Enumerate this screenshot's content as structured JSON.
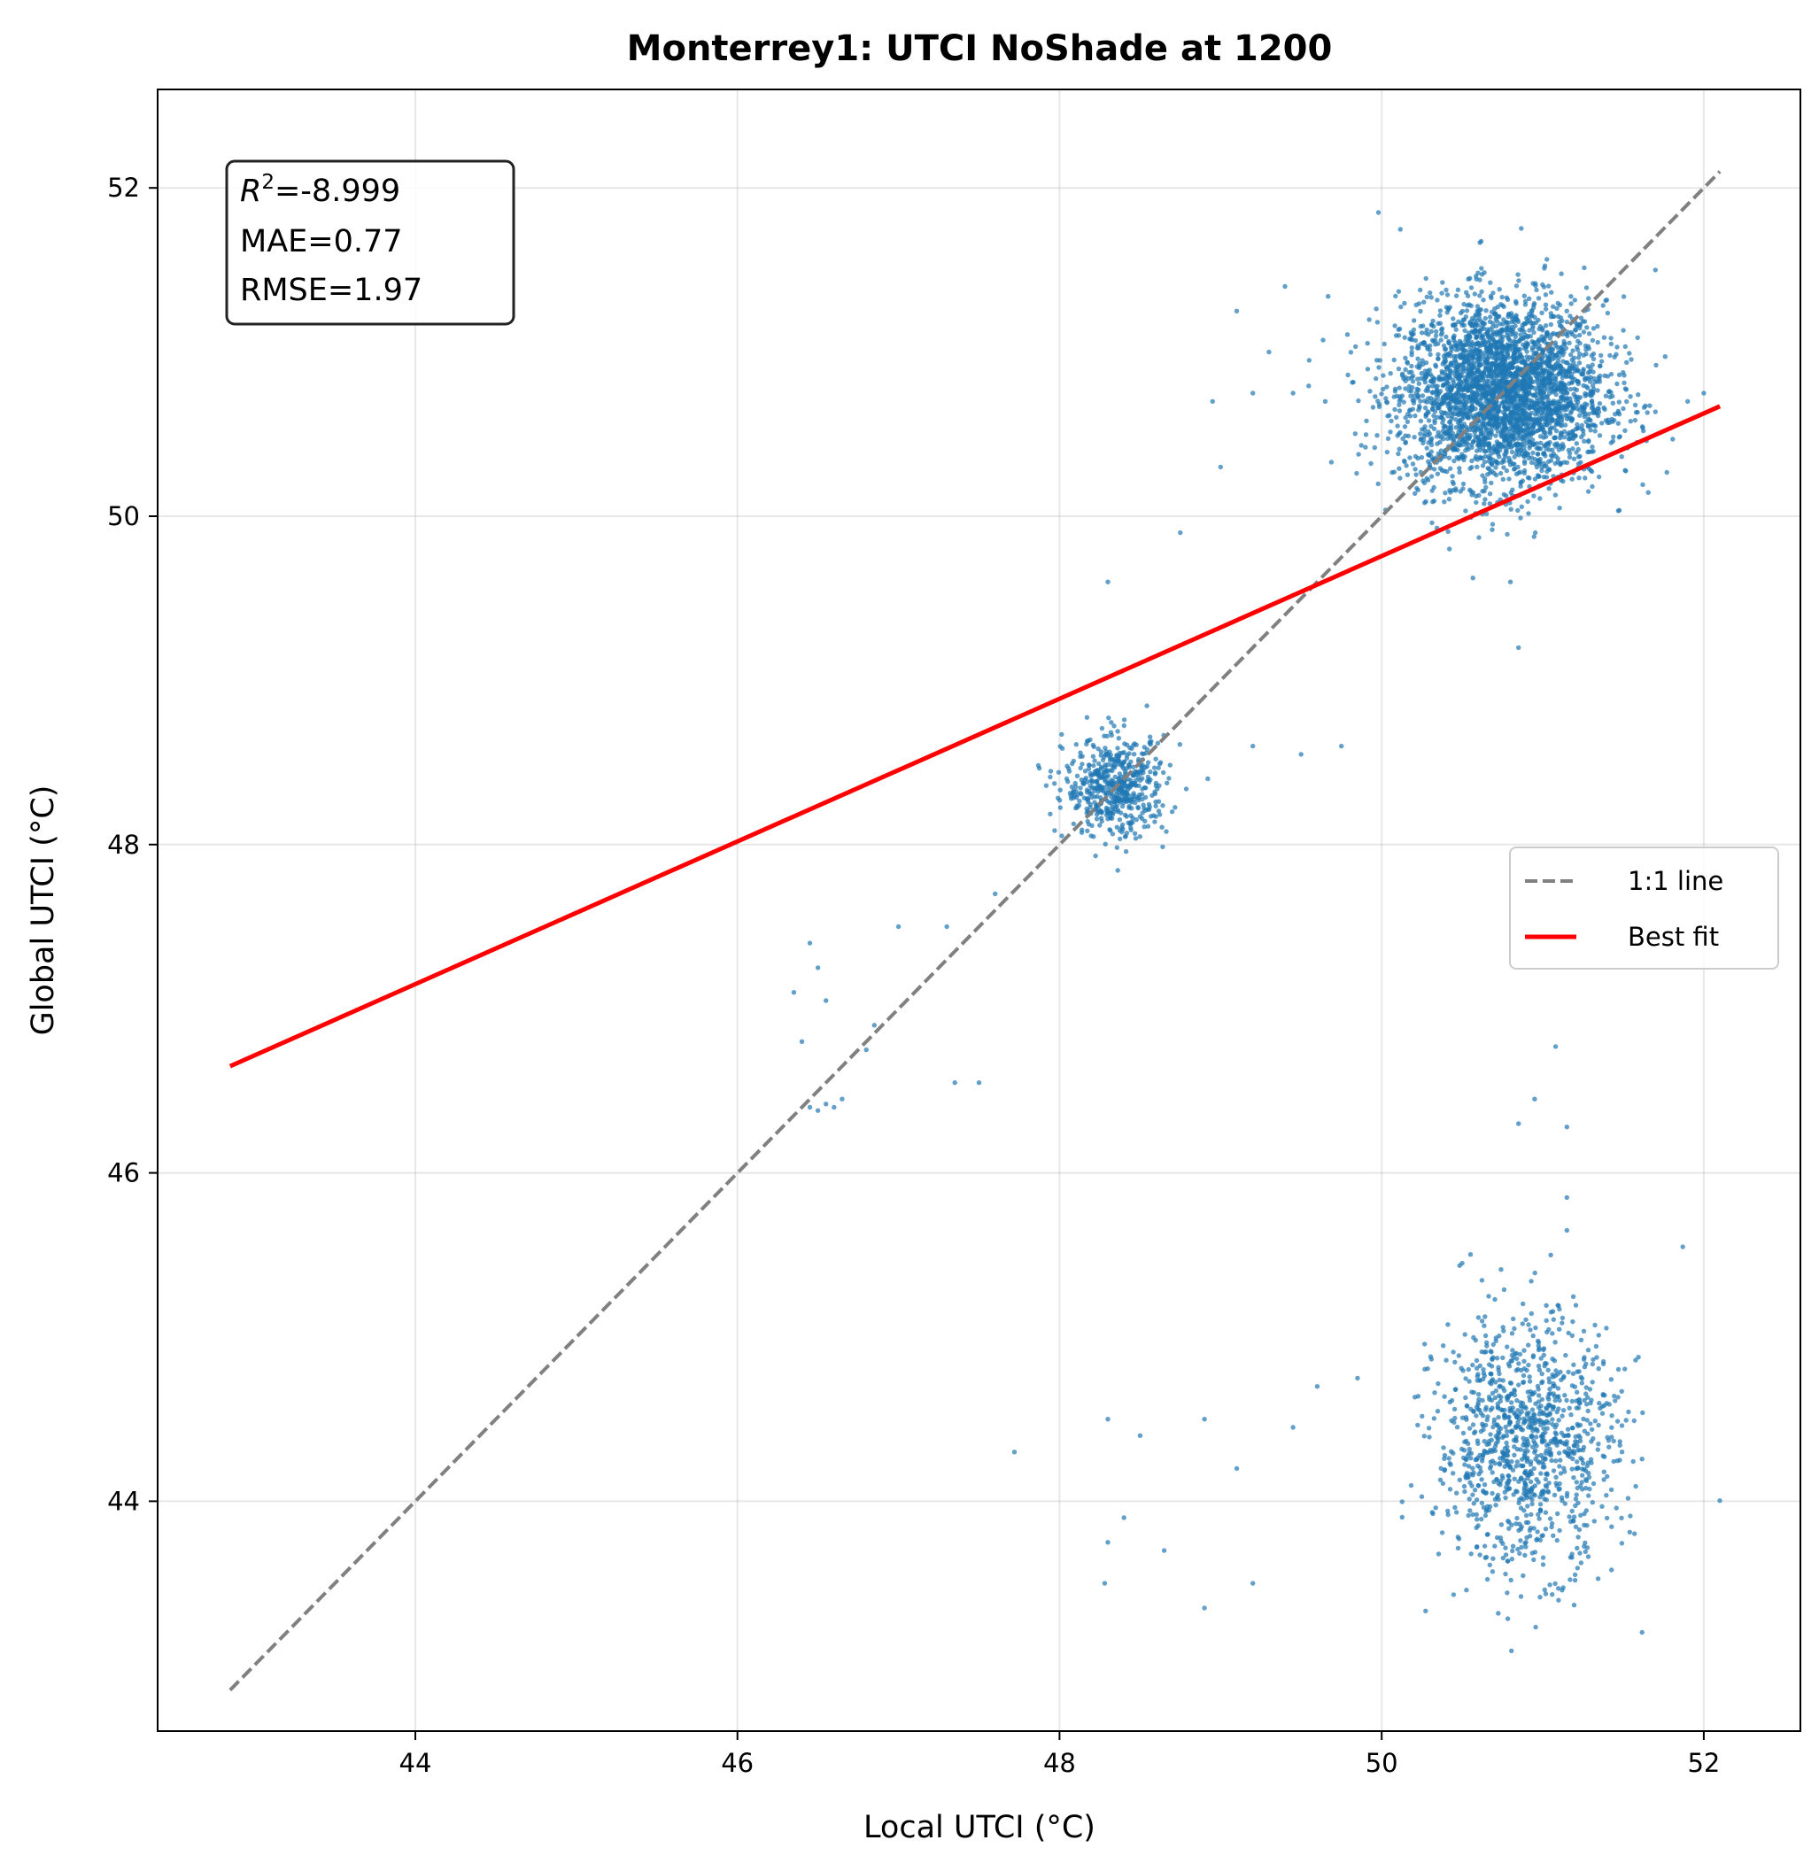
{
  "chart_data": {
    "type": "scatter",
    "title": "Monterrey1: UTCI NoShade at 1200",
    "xlabel": "Local UTCI (°C)",
    "ylabel": "Global UTCI (°C)",
    "xlim": [
      42.4,
      52.6
    ],
    "ylim": [
      42.6,
      52.6
    ],
    "xticks": [
      44,
      46,
      48,
      50,
      52
    ],
    "yticks": [
      44,
      46,
      48,
      50,
      52
    ],
    "grid": true,
    "legend_position": "center-right",
    "stats": {
      "r2_symbol": "R",
      "r2_exp": "2",
      "r2_value": "=-8.999",
      "mae": "MAE=0.77",
      "rmse": "RMSE=1.97"
    },
    "series": [
      {
        "kind": "points",
        "color": "#1f77b4",
        "clusters": [
          {
            "center": [
              50.75,
              50.75
            ],
            "spread": [
              0.32,
              0.28
            ],
            "count": 3200
          },
          {
            "center": [
              50.9,
              44.35
            ],
            "spread": [
              0.28,
              0.38
            ],
            "count": 1100
          },
          {
            "center": [
              48.35,
              48.35
            ],
            "spread": [
              0.16,
              0.15
            ],
            "count": 550
          }
        ],
        "outliers": [
          [
            46.35,
            47.1
          ],
          [
            46.4,
            46.8
          ],
          [
            46.45,
            47.4
          ],
          [
            46.5,
            47.25
          ],
          [
            46.55,
            47.05
          ],
          [
            46.45,
            46.4
          ],
          [
            46.5,
            46.38
          ],
          [
            46.55,
            46.42
          ],
          [
            46.6,
            46.4
          ],
          [
            46.65,
            46.45
          ],
          [
            46.8,
            46.75
          ],
          [
            46.85,
            46.9
          ],
          [
            47.0,
            47.5
          ],
          [
            47.3,
            47.5
          ],
          [
            47.35,
            46.55
          ],
          [
            47.5,
            46.55
          ],
          [
            47.6,
            47.7
          ],
          [
            47.72,
            44.3
          ],
          [
            48.3,
            44.5
          ],
          [
            48.28,
            43.5
          ],
          [
            48.3,
            43.75
          ],
          [
            48.4,
            43.9
          ],
          [
            48.5,
            44.4
          ],
          [
            48.65,
            43.7
          ],
          [
            48.9,
            44.5
          ],
          [
            48.9,
            43.35
          ],
          [
            49.1,
            44.2
          ],
          [
            49.2,
            43.5
          ],
          [
            49.45,
            44.45
          ],
          [
            49.6,
            44.7
          ],
          [
            48.3,
            49.6
          ],
          [
            48.75,
            49.9
          ],
          [
            49.0,
            50.3
          ],
          [
            49.1,
            51.25
          ],
          [
            49.3,
            51.0
          ],
          [
            49.4,
            51.4
          ],
          [
            49.55,
            50.95
          ],
          [
            49.75,
            48.6
          ],
          [
            49.98,
            51.85
          ],
          [
            49.5,
            48.55
          ],
          [
            49.2,
            48.6
          ],
          [
            48.95,
            50.7
          ],
          [
            49.2,
            50.75
          ],
          [
            49.45,
            50.75
          ],
          [
            49.65,
            50.7
          ],
          [
            50.85,
            49.2
          ],
          [
            50.8,
            49.6
          ],
          [
            51.08,
            46.77
          ],
          [
            50.95,
            46.45
          ],
          [
            50.85,
            46.3
          ],
          [
            51.15,
            46.28
          ],
          [
            51.15,
            45.85
          ],
          [
            51.15,
            45.65
          ],
          [
            51.05,
            45.5
          ],
          [
            51.87,
            45.55
          ],
          [
            51.7,
            51.5
          ],
          [
            51.9,
            50.7
          ],
          [
            52.0,
            50.75
          ],
          [
            50.5,
            45.45
          ],
          [
            49.85,
            44.75
          ]
        ]
      },
      {
        "kind": "line",
        "name": "1:1 line",
        "style": "dashed",
        "color": "#808080",
        "x": [
          42.85,
          52.1
        ],
        "y": [
          42.85,
          52.1
        ]
      },
      {
        "kind": "line",
        "name": "Best fit",
        "style": "solid",
        "color": "#ff0000",
        "x": [
          42.85,
          52.1
        ],
        "y": [
          46.65,
          50.67
        ]
      }
    ]
  }
}
